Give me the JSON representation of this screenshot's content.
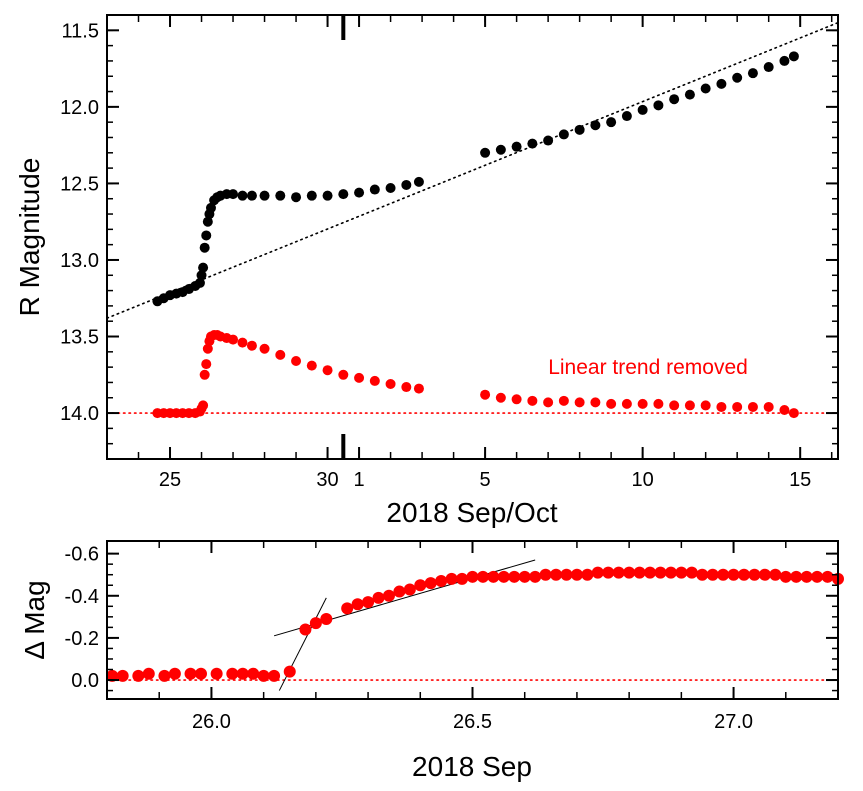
{
  "colors": {
    "raw": "#000000",
    "detrended": "#ff0000",
    "annotation": "#ff0000",
    "axis": "#000000"
  },
  "chart_data": [
    {
      "type": "scatter",
      "title": "",
      "xlabel": "2018 Sep/Oct",
      "ylabel": "R Magnitude",
      "x_unit": "days since 2018 Sep 0 (Oct 1 = 31)",
      "xlim": [
        23.0,
        46.2
      ],
      "ylim": [
        14.3,
        11.4
      ],
      "y_inverted": true,
      "grid": false,
      "xtick_labels": [
        {
          "x": 25,
          "label": "25"
        },
        {
          "x": 30,
          "label": "30"
        },
        {
          "x": 31,
          "label": "1"
        },
        {
          "x": 35,
          "label": "5"
        },
        {
          "x": 40,
          "label": "10"
        },
        {
          "x": 45,
          "label": "15"
        }
      ],
      "yticks": [
        11.5,
        12.0,
        12.5,
        13.0,
        13.5,
        14.0
      ],
      "ytick_labels": [
        "11.5",
        "12.0",
        "12.5",
        "13.0",
        "13.5",
        "14.0"
      ],
      "month_boundary_x": 30.5,
      "annotation": "Linear trend removed",
      "trend_line": {
        "x": [
          23.0,
          46.2
        ],
        "y": [
          13.38,
          11.45
        ],
        "style": "dotted",
        "color": "#000000"
      },
      "baseline": {
        "y": 14.0,
        "style": "dotted",
        "color": "#ff0000"
      },
      "series": [
        {
          "color": "#000000",
          "marker": "circle",
          "x": [
            24.6,
            24.8,
            25.0,
            25.2,
            25.4,
            25.6,
            25.8,
            25.95,
            26.0,
            26.05,
            26.1,
            26.15,
            26.2,
            26.25,
            26.3,
            26.4,
            26.5,
            26.6,
            26.8,
            27.0,
            27.3,
            27.6,
            28.0,
            28.5,
            29.0,
            29.5,
            30.0,
            30.5,
            31.0,
            31.5,
            32.0,
            32.5,
            32.9,
            35.0,
            35.5,
            36.0,
            36.5,
            37.0,
            37.5,
            38.0,
            38.5,
            39.0,
            39.5,
            40.0,
            40.5,
            41.0,
            41.5,
            42.0,
            42.5,
            43.0,
            43.5,
            44.0,
            44.5,
            44.8
          ],
          "y": [
            13.27,
            13.25,
            13.23,
            13.22,
            13.21,
            13.19,
            13.17,
            13.15,
            13.1,
            13.05,
            12.92,
            12.84,
            12.75,
            12.7,
            12.66,
            12.61,
            12.59,
            12.58,
            12.57,
            12.57,
            12.58,
            12.58,
            12.58,
            12.58,
            12.59,
            12.58,
            12.58,
            12.57,
            12.56,
            12.54,
            12.53,
            12.51,
            12.49,
            12.3,
            12.28,
            12.26,
            12.24,
            12.22,
            12.18,
            12.15,
            12.12,
            12.1,
            12.06,
            12.02,
            11.99,
            11.95,
            11.92,
            11.88,
            11.85,
            11.81,
            11.78,
            11.74,
            11.7,
            11.67
          ]
        },
        {
          "color": "#ff0000",
          "marker": "circle",
          "x": [
            24.6,
            24.8,
            25.0,
            25.2,
            25.4,
            25.6,
            25.8,
            25.95,
            26.0,
            26.05,
            26.1,
            26.15,
            26.2,
            26.25,
            26.3,
            26.4,
            26.5,
            26.6,
            26.8,
            27.0,
            27.3,
            27.6,
            28.0,
            28.5,
            29.0,
            29.5,
            30.0,
            30.5,
            31.0,
            31.5,
            32.0,
            32.5,
            32.9,
            35.0,
            35.5,
            36.0,
            36.5,
            37.0,
            37.5,
            38.0,
            38.5,
            39.0,
            39.5,
            40.0,
            40.5,
            41.0,
            41.5,
            42.0,
            42.5,
            43.0,
            43.5,
            44.0,
            44.5,
            44.8
          ],
          "y": [
            14.0,
            14.0,
            14.0,
            14.0,
            14.0,
            14.0,
            14.0,
            13.99,
            13.97,
            13.95,
            13.75,
            13.68,
            13.58,
            13.53,
            13.5,
            13.49,
            13.49,
            13.5,
            13.51,
            13.52,
            13.54,
            13.56,
            13.58,
            13.62,
            13.66,
            13.69,
            13.72,
            13.75,
            13.77,
            13.79,
            13.81,
            13.83,
            13.84,
            13.88,
            13.9,
            13.91,
            13.92,
            13.93,
            13.92,
            13.93,
            13.93,
            13.94,
            13.94,
            13.94,
            13.94,
            13.95,
            13.95,
            13.95,
            13.96,
            13.96,
            13.96,
            13.96,
            13.98,
            14.0
          ]
        }
      ]
    },
    {
      "type": "scatter",
      "title": "",
      "xlabel": "2018 Sep",
      "ylabel": "Δ Mag",
      "xlim": [
        25.8,
        27.2
      ],
      "ylim": [
        0.09,
        -0.66
      ],
      "y_inverted": true,
      "grid": false,
      "xticks": [
        26.0,
        26.5,
        27.0
      ],
      "xtick_labels": [
        "26.0",
        "26.5",
        "27.0"
      ],
      "yticks": [
        -0.6,
        -0.4,
        -0.2,
        0.0
      ],
      "ytick_labels": [
        "-0.6",
        "-0.4",
        "-0.2",
        "0.0"
      ],
      "baseline": {
        "y": 0.0,
        "style": "dotted",
        "color": "#ff0000"
      },
      "guide_lines": [
        {
          "x": [
            26.12,
            26.62
          ],
          "y": [
            -0.21,
            -0.57
          ]
        },
        {
          "x": [
            26.13,
            26.22
          ],
          "y": [
            0.05,
            -0.39
          ]
        }
      ],
      "series": [
        {
          "color": "#ff0000",
          "marker": "circle",
          "x": [
            25.81,
            25.83,
            25.86,
            25.88,
            25.91,
            25.93,
            25.96,
            25.98,
            26.01,
            26.04,
            26.06,
            26.08,
            26.1,
            26.12,
            26.15,
            26.18,
            26.2,
            26.22,
            26.26,
            26.28,
            26.3,
            26.32,
            26.34,
            26.36,
            26.38,
            26.4,
            26.42,
            26.44,
            26.46,
            26.48,
            26.5,
            26.52,
            26.54,
            26.56,
            26.58,
            26.6,
            26.62,
            26.64,
            26.66,
            26.68,
            26.7,
            26.72,
            26.74,
            26.76,
            26.78,
            26.8,
            26.82,
            26.84,
            26.86,
            26.88,
            26.9,
            26.92,
            26.94,
            26.96,
            26.98,
            27.0,
            27.02,
            27.04,
            27.06,
            27.08,
            27.1,
            27.12,
            27.14,
            27.16,
            27.18,
            27.2
          ],
          "y": [
            -0.02,
            -0.02,
            -0.02,
            -0.03,
            -0.02,
            -0.03,
            -0.03,
            -0.03,
            -0.03,
            -0.03,
            -0.03,
            -0.03,
            -0.02,
            -0.02,
            -0.04,
            -0.24,
            -0.27,
            -0.29,
            -0.34,
            -0.36,
            -0.37,
            -0.39,
            -0.4,
            -0.42,
            -0.43,
            -0.45,
            -0.46,
            -0.47,
            -0.48,
            -0.48,
            -0.49,
            -0.49,
            -0.49,
            -0.49,
            -0.49,
            -0.49,
            -0.49,
            -0.5,
            -0.5,
            -0.5,
            -0.5,
            -0.5,
            -0.51,
            -0.51,
            -0.51,
            -0.51,
            -0.51,
            -0.51,
            -0.51,
            -0.51,
            -0.51,
            -0.51,
            -0.5,
            -0.5,
            -0.5,
            -0.5,
            -0.5,
            -0.5,
            -0.5,
            -0.5,
            -0.49,
            -0.49,
            -0.49,
            -0.49,
            -0.49,
            -0.48
          ]
        }
      ]
    }
  ]
}
